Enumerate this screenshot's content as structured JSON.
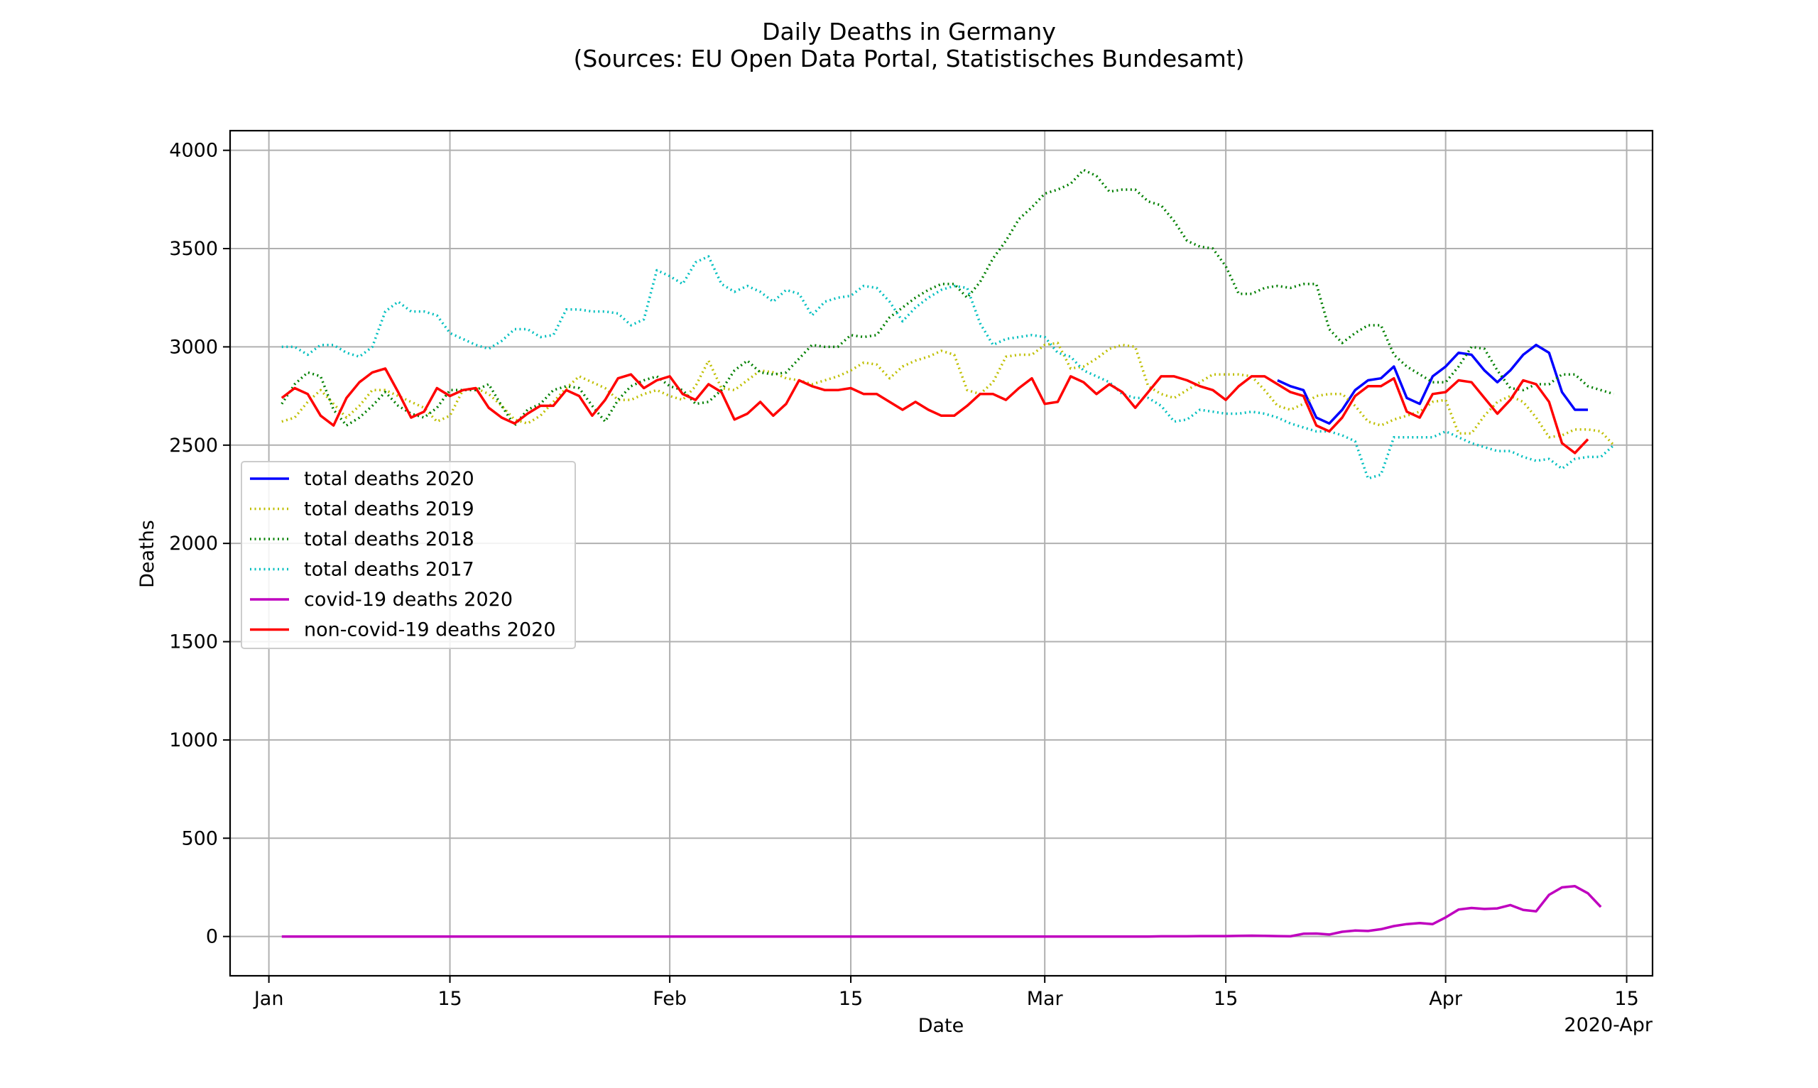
{
  "chart_data": {
    "type": "line",
    "title": "Daily Deaths in Germany",
    "subtitle": "(Sources: EU Open Data Portal, Statistisches Bundesamt)",
    "xlabel": "Date",
    "ylabel": "Deaths",
    "x_start": "2020-01-01",
    "x_end": "2020-04-18",
    "xlim": [
      "2019-12-29",
      "2020-04-17"
    ],
    "ylim": [
      -200,
      4100
    ],
    "grid": true,
    "legend_position": "center-left",
    "x_ticks": [
      {
        "date": "2020-01-01",
        "label": "Jan"
      },
      {
        "date": "2020-01-15",
        "label": "15"
      },
      {
        "date": "2020-02-01",
        "label": "Feb"
      },
      {
        "date": "2020-02-15",
        "label": "15"
      },
      {
        "date": "2020-03-01",
        "label": "Mar"
      },
      {
        "date": "2020-03-15",
        "label": "15"
      },
      {
        "date": "2020-04-01",
        "label": "Apr"
      },
      {
        "date": "2020-04-15",
        "label": "15"
      }
    ],
    "x_offset_label": "2020-Apr",
    "y_ticks": [
      0,
      500,
      1000,
      1500,
      2000,
      2500,
      3000,
      3500,
      4000
    ],
    "series": [
      {
        "name": "total deaths 2020",
        "color": "#0000ff",
        "style": "solid",
        "start": "2020-03-19",
        "values": [
          2830,
          2800,
          2780,
          2640,
          2610,
          2680,
          2780,
          2830,
          2840,
          2900,
          2740,
          2710,
          2850,
          2900,
          2970,
          2960,
          2880,
          2820,
          2880,
          2960,
          3010,
          2970,
          2770,
          2680,
          2680
        ]
      },
      {
        "name": "total deaths 2019",
        "color": "#bfbf00",
        "style": "dotted",
        "start": "2020-01-02",
        "values": [
          2620,
          2640,
          2720,
          2780,
          2710,
          2640,
          2700,
          2780,
          2780,
          2750,
          2720,
          2690,
          2620,
          2650,
          2780,
          2790,
          2760,
          2700,
          2630,
          2610,
          2650,
          2720,
          2790,
          2850,
          2820,
          2790,
          2730,
          2730,
          2760,
          2780,
          2750,
          2730,
          2800,
          2930,
          2790,
          2780,
          2830,
          2880,
          2870,
          2840,
          2830,
          2810,
          2830,
          2850,
          2880,
          2920,
          2910,
          2840,
          2900,
          2930,
          2950,
          2980,
          2960,
          2780,
          2760,
          2820,
          2950,
          2960,
          2960,
          3010,
          3020,
          2890,
          2900,
          2940,
          2990,
          3010,
          3000,
          2800,
          2760,
          2740,
          2780,
          2820,
          2860,
          2860,
          2860,
          2850,
          2780,
          2700,
          2680,
          2710,
          2750,
          2760,
          2760,
          2700,
          2620,
          2600,
          2630,
          2650,
          2670,
          2720,
          2730,
          2560,
          2560,
          2650,
          2720,
          2750,
          2720,
          2640,
          2540,
          2550,
          2580,
          2580,
          2570,
          2500
        ]
      },
      {
        "name": "total deaths 2018",
        "color": "#007f00",
        "style": "dotted",
        "start": "2020-01-02",
        "values": [
          2710,
          2810,
          2870,
          2850,
          2680,
          2600,
          2640,
          2700,
          2770,
          2700,
          2660,
          2640,
          2690,
          2780,
          2780,
          2780,
          2810,
          2700,
          2600,
          2680,
          2710,
          2780,
          2800,
          2790,
          2700,
          2620,
          2730,
          2800,
          2830,
          2850,
          2800,
          2780,
          2710,
          2720,
          2780,
          2880,
          2930,
          2870,
          2860,
          2870,
          2940,
          3010,
          3000,
          3000,
          3060,
          3050,
          3060,
          3150,
          3200,
          3250,
          3290,
          3320,
          3320,
          3250,
          3330,
          3450,
          3540,
          3650,
          3710,
          3780,
          3800,
          3830,
          3900,
          3870,
          3790,
          3800,
          3800,
          3740,
          3720,
          3640,
          3540,
          3510,
          3500,
          3410,
          3270,
          3270,
          3300,
          3310,
          3300,
          3320,
          3320,
          3090,
          3020,
          3070,
          3110,
          3110,
          2960,
          2900,
          2860,
          2820,
          2820,
          2900,
          3000,
          2990,
          2880,
          2790,
          2780,
          2810,
          2810,
          2860,
          2860,
          2800,
          2780,
          2760
        ]
      },
      {
        "name": "total deaths 2017",
        "color": "#00bfbf",
        "style": "dotted",
        "start": "2020-01-02",
        "values": [
          3000,
          3000,
          2960,
          3010,
          3010,
          2970,
          2950,
          3000,
          3180,
          3230,
          3180,
          3180,
          3160,
          3070,
          3040,
          3010,
          2990,
          3030,
          3090,
          3090,
          3050,
          3060,
          3190,
          3190,
          3180,
          3180,
          3170,
          3110,
          3140,
          3390,
          3360,
          3320,
          3430,
          3460,
          3320,
          3280,
          3310,
          3280,
          3230,
          3290,
          3270,
          3160,
          3230,
          3250,
          3260,
          3310,
          3300,
          3230,
          3130,
          3200,
          3250,
          3290,
          3310,
          3300,
          3120,
          3010,
          3040,
          3050,
          3060,
          3050,
          2970,
          2950,
          2880,
          2850,
          2820,
          2760,
          2740,
          2740,
          2700,
          2620,
          2630,
          2680,
          2670,
          2660,
          2660,
          2670,
          2660,
          2640,
          2610,
          2590,
          2570,
          2570,
          2550,
          2520,
          2330,
          2350,
          2540,
          2540,
          2540,
          2540,
          2570,
          2540,
          2510,
          2490,
          2470,
          2470,
          2440,
          2420,
          2430,
          2380,
          2430,
          2440,
          2440,
          2500
        ]
      },
      {
        "name": "covid-19 deaths 2020",
        "color": "#bf00bf",
        "style": "solid",
        "start": "2020-01-02",
        "values": [
          0,
          0,
          0,
          0,
          0,
          0,
          0,
          0,
          0,
          0,
          0,
          0,
          0,
          0,
          0,
          0,
          0,
          0,
          0,
          0,
          0,
          0,
          0,
          0,
          0,
          0,
          0,
          0,
          0,
          0,
          0,
          0,
          0,
          0,
          0,
          0,
          0,
          0,
          0,
          0,
          0,
          0,
          0,
          0,
          0,
          0,
          0,
          0,
          0,
          0,
          0,
          0,
          0,
          0,
          0,
          0,
          0,
          0,
          0,
          0,
          0,
          0,
          0,
          0,
          0,
          0,
          0,
          0,
          1,
          1,
          1,
          2,
          2,
          2,
          3,
          4,
          3,
          2,
          1,
          14,
          15,
          10,
          24,
          30,
          28,
          37,
          53,
          63,
          68,
          63,
          97,
          137,
          145,
          140,
          143,
          160,
          135,
          128,
          212,
          250,
          256,
          220,
          150
        ]
      },
      {
        "name": "non-covid-19 deaths 2020",
        "color": "#ff0000",
        "style": "solid",
        "start": "2020-01-02",
        "values": [
          2740,
          2790,
          2760,
          2650,
          2600,
          2740,
          2820,
          2870,
          2890,
          2770,
          2640,
          2670,
          2790,
          2750,
          2780,
          2790,
          2690,
          2640,
          2610,
          2660,
          2700,
          2700,
          2780,
          2750,
          2650,
          2730,
          2840,
          2860,
          2790,
          2830,
          2850,
          2760,
          2730,
          2810,
          2770,
          2630,
          2660,
          2720,
          2650,
          2710,
          2830,
          2800,
          2780,
          2780,
          2790,
          2760,
          2760,
          2720,
          2680,
          2720,
          2680,
          2650,
          2650,
          2700,
          2760,
          2760,
          2730,
          2790,
          2840,
          2710,
          2720,
          2850,
          2820,
          2760,
          2810,
          2770,
          2690,
          2770,
          2850,
          2850,
          2830,
          2800,
          2780,
          2730,
          2800,
          2850,
          2850,
          2810,
          2770,
          2750,
          2600,
          2570,
          2640,
          2750,
          2800,
          2800,
          2840,
          2670,
          2640,
          2760,
          2770,
          2830,
          2820,
          2740,
          2660,
          2730,
          2830,
          2810,
          2720,
          2510,
          2460,
          2530
        ]
      }
    ]
  }
}
